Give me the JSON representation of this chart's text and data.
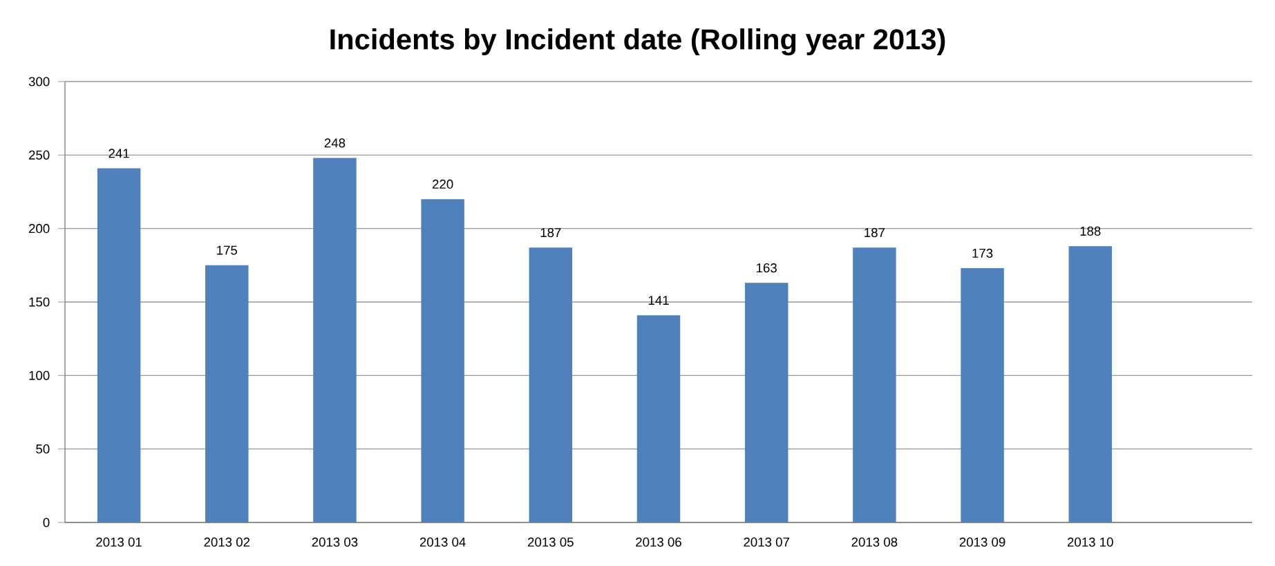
{
  "chart_data": {
    "type": "bar",
    "title": "Incidents by Incident date (Rolling year 2013)",
    "categories": [
      "2013 01",
      "2013 02",
      "2013 03",
      "2013 04",
      "2013 05",
      "2013 06",
      "2013 07",
      "2013 08",
      "2013 09",
      "2013 10",
      null
    ],
    "values": [
      241,
      175,
      248,
      220,
      187,
      141,
      163,
      187,
      173,
      188,
      null
    ],
    "color": "#4f81bd",
    "ylim": [
      0,
      300
    ],
    "yticks": [
      0,
      50,
      100,
      150,
      200,
      250,
      300
    ],
    "grid": "y",
    "data_labels": true
  }
}
